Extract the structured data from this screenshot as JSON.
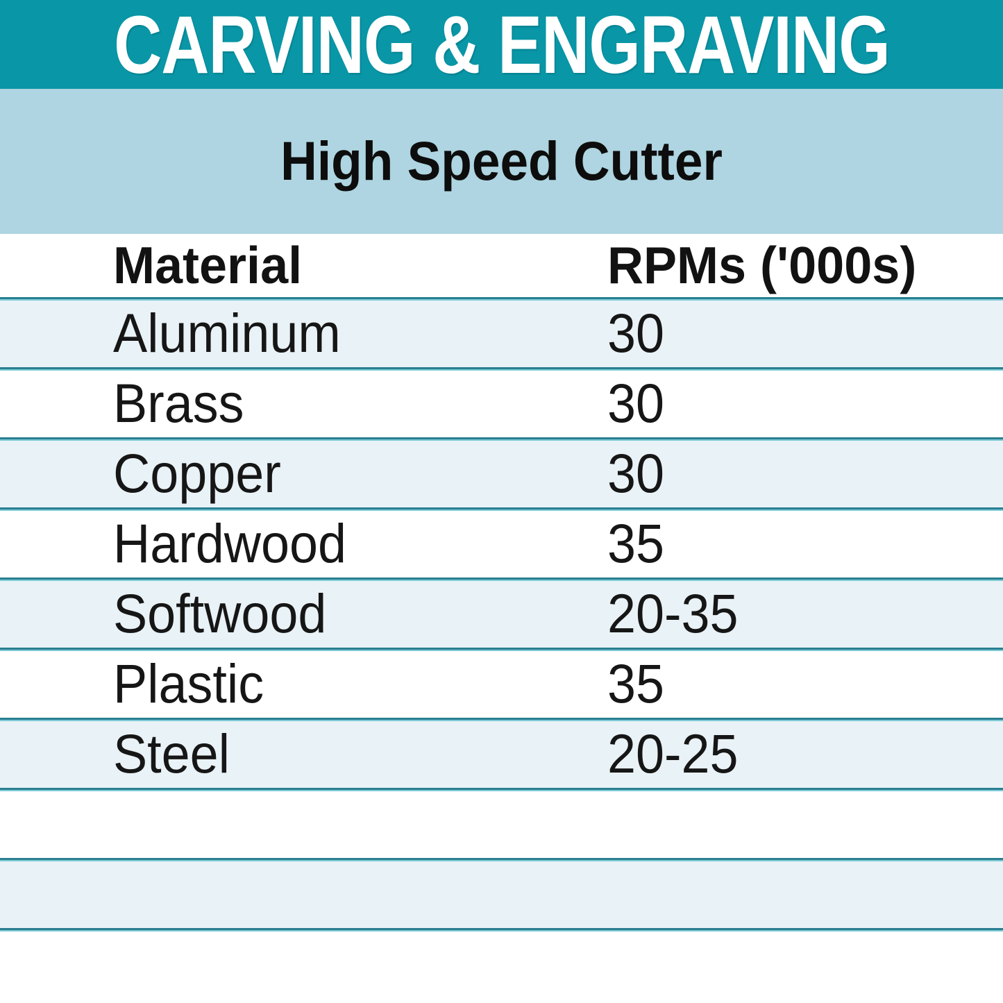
{
  "header": {
    "title": "CARVING & ENGRAVING"
  },
  "subtitle": {
    "text": "High Speed Cutter"
  },
  "table": {
    "columns": {
      "material": "Material",
      "rpm": "RPMs ('000s)"
    },
    "rows": [
      {
        "material": "Aluminum",
        "rpm": "30"
      },
      {
        "material": "Brass",
        "rpm": "30"
      },
      {
        "material": "Copper",
        "rpm": "30"
      },
      {
        "material": "Hardwood",
        "rpm": "35"
      },
      {
        "material": "Softwood",
        "rpm": "20-35"
      },
      {
        "material": "Plastic",
        "rpm": "35"
      },
      {
        "material": "Steel",
        "rpm": "20-25"
      },
      {
        "material": "",
        "rpm": ""
      },
      {
        "material": "",
        "rpm": ""
      },
      {
        "material": "",
        "rpm": ""
      }
    ]
  },
  "colors": {
    "band_teal": "#0996a6",
    "band_light_blue": "#aed5e1",
    "row_pale_blue": "#e9f2f6",
    "row_white": "#ffffff",
    "separator_dark": "#2a7f90",
    "separator_light": "#7ecbd8",
    "title_text": "#ffffff",
    "body_text": "#161616"
  },
  "chart_data": {
    "type": "table",
    "title": "CARVING & ENGRAVING",
    "subtitle": "High Speed Cutter",
    "columns": [
      "Material",
      "RPMs ('000s)"
    ],
    "rows": [
      [
        "Aluminum",
        "30"
      ],
      [
        "Brass",
        "30"
      ],
      [
        "Copper",
        "30"
      ],
      [
        "Hardwood",
        "35"
      ],
      [
        "Softwood",
        "20-35"
      ],
      [
        "Plastic",
        "35"
      ],
      [
        "Steel",
        "20-25"
      ]
    ]
  }
}
